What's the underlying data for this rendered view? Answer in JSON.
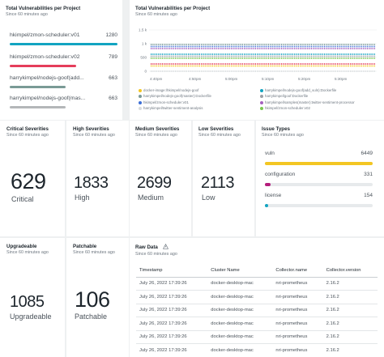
{
  "proj": {
    "title": "Total Vulnerabilities per Project",
    "subtitle": "Since 60 minutes ago",
    "items": [
      {
        "label": "hkimpel/zmon-scheduler:v01",
        "value": "1280",
        "fill": 1.0,
        "color": "#12a4c1"
      },
      {
        "label": "hkimpel/zmon-scheduler:v02",
        "value": "789",
        "fill": 0.62,
        "color": "#e53d5b"
      },
      {
        "label": "harrykimpel/nodejs-goof(add...",
        "value": "663",
        "fill": 0.52,
        "color": "#7a9a96"
      },
      {
        "label": "harrykimpel/nodejs-goof(mas...",
        "value": "663",
        "fill": 0.52,
        "color": "#b4b7b9"
      }
    ]
  },
  "timeline": {
    "title": "Total Vulnerabilities per Project",
    "subtitle": "Since 60 minutes ago",
    "y_ticks": [
      "1.5 k",
      "1 k",
      "500",
      "0"
    ],
    "x_ticks": [
      "4:40pm",
      "4:50pm",
      "5:00pm",
      "5:10pm",
      "5:20pm",
      "5:30pm"
    ],
    "legend": [
      {
        "label": "docker-image:/hkimpel/nodejs-goof",
        "color": "#f3c623"
      },
      {
        "label": "harrykimpel/nodejs-goof(add_vuln):Dockerfile",
        "color": "#12a4c1"
      },
      {
        "label": "harrykimpel/nodejs-goof(master):Dockerfile",
        "color": "#7a9a96"
      },
      {
        "label": "harrykimpel/goof:Dockerfile",
        "color": "#9aa0a5"
      },
      {
        "label": "hkimpel/zmon-scheduler:v01",
        "color": "#3d6fd6"
      },
      {
        "label": "harrykimpel/samples(master):twitter-sentiment-processor",
        "color": "#a55fbf"
      },
      {
        "label": "harrykimpel/twitter-sentiment-analysis",
        "color": "#d8dbdd"
      },
      {
        "label": "hkimpel/zmon-scheduler:v02",
        "color": "#7ac74f"
      }
    ]
  },
  "crit": {
    "title": "Critical Severities",
    "subtitle": "Since 60 minutes ago",
    "value": "629",
    "label": "Critical"
  },
  "high": {
    "title": "High Severities",
    "subtitle": "Since 60 minutes ago",
    "value": "1833",
    "label": "High"
  },
  "med": {
    "title": "Medium Severities",
    "subtitle": "Since 60 minutes ago",
    "value": "2699",
    "label": "Medium"
  },
  "low": {
    "title": "Low Severities",
    "subtitle": "Since 60 minutes ago",
    "value": "2113",
    "label": "Low"
  },
  "issues": {
    "title": "Issue Types",
    "subtitle": "Since 60 minutes ago",
    "items": [
      {
        "label": "vuln",
        "value": "6449",
        "fill": 1.0,
        "color": "#f3c623"
      },
      {
        "label": "configuration",
        "value": "331",
        "fill": 0.05,
        "color": "#b51d7c"
      },
      {
        "label": "license",
        "value": "154",
        "fill": 0.025,
        "color": "#12a4c1"
      }
    ]
  },
  "upg": {
    "title": "Upgradeable",
    "subtitle": "Since 60 minutes ago",
    "value": "1085",
    "label": "Upgradeable"
  },
  "patch": {
    "title": "Patchable",
    "subtitle": "Since 60 minutes ago",
    "value": "106",
    "label": "Patchable"
  },
  "raw": {
    "title": "Raw Data",
    "subtitle": "Since 60 minutes ago",
    "columns": [
      "Timestamp",
      "Cluster Name",
      "Collector.name",
      "Collector.version"
    ],
    "rows": [
      [
        "July 26, 2022 17:39:26",
        "docker-desktop-mac",
        "nri-prometheus",
        "2.16.2"
      ],
      [
        "July 26, 2022 17:39:26",
        "docker-desktop-mac",
        "nri-prometheus",
        "2.16.2"
      ],
      [
        "July 26, 2022 17:39:26",
        "docker-desktop-mac",
        "nri-prometheus",
        "2.16.2"
      ],
      [
        "July 26, 2022 17:39:26",
        "docker-desktop-mac",
        "nri-prometheus",
        "2.16.2"
      ],
      [
        "July 26, 2022 17:39:26",
        "docker-desktop-mac",
        "nri-prometheus",
        "2.16.2"
      ],
      [
        "July 26, 2022 17:39:26",
        "docker-desktop-mac",
        "nri-prometheus",
        "2.16.2"
      ]
    ]
  }
}
